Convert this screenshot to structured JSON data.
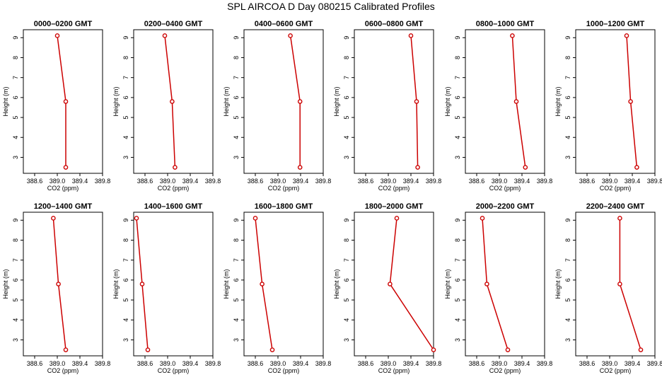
{
  "title": "SPL AIRCOA D  Day 080215  Calibrated Profiles",
  "chart_data": [
    {
      "type": "line",
      "title": "0000–0200 GMT",
      "xlabel": "CO2 (ppm)",
      "ylabel": "Height (m)",
      "xlim": [
        388.4,
        389.8
      ],
      "ylim": [
        2.2,
        9.4
      ],
      "xticks": [
        "388.6",
        "389.0",
        "389.4",
        "389.8"
      ],
      "yticks": [
        "3",
        "4",
        "5",
        "6",
        "7",
        "8",
        "9"
      ],
      "grid": false,
      "series": [
        {
          "x": [
            389.0,
            389.15,
            389.15
          ],
          "y": [
            9.1,
            5.8,
            2.5
          ]
        }
      ],
      "color": "#cc0000"
    },
    {
      "type": "line",
      "title": "0200–0400 GMT",
      "xlabel": "CO2 (ppm)",
      "ylabel": "Height (m)",
      "xlim": [
        388.4,
        389.8
      ],
      "ylim": [
        2.2,
        9.4
      ],
      "xticks": [
        "388.6",
        "389.0",
        "389.4",
        "389.8"
      ],
      "yticks": [
        "3",
        "4",
        "5",
        "6",
        "7",
        "8",
        "9"
      ],
      "grid": false,
      "series": [
        {
          "x": [
            388.95,
            389.08,
            389.13
          ],
          "y": [
            9.1,
            5.8,
            2.5
          ]
        }
      ],
      "color": "#cc0000"
    },
    {
      "type": "line",
      "title": "0400–0600 GMT",
      "xlabel": "CO2 (ppm)",
      "ylabel": "Height (m)",
      "xlim": [
        388.4,
        389.8
      ],
      "ylim": [
        2.2,
        9.4
      ],
      "xticks": [
        "388.6",
        "389.0",
        "389.4",
        "389.8"
      ],
      "yticks": [
        "3",
        "4",
        "5",
        "6",
        "7",
        "8",
        "9"
      ],
      "grid": false,
      "series": [
        {
          "x": [
            389.22,
            389.39,
            389.39
          ],
          "y": [
            9.1,
            5.8,
            2.5
          ]
        }
      ],
      "color": "#cc0000"
    },
    {
      "type": "line",
      "title": "0600–0800 GMT",
      "xlabel": "CO2 (ppm)",
      "ylabel": "Height (m)",
      "xlim": [
        388.4,
        389.8
      ],
      "ylim": [
        2.2,
        9.4
      ],
      "xticks": [
        "388.6",
        "389.0",
        "389.4",
        "389.8"
      ],
      "yticks": [
        "3",
        "4",
        "5",
        "6",
        "7",
        "8",
        "9"
      ],
      "grid": false,
      "series": [
        {
          "x": [
            389.4,
            389.5,
            389.52
          ],
          "y": [
            9.1,
            5.8,
            2.5
          ]
        }
      ],
      "color": "#cc0000"
    },
    {
      "type": "line",
      "title": "0800–1000 GMT",
      "xlabel": "CO2 (ppm)",
      "ylabel": "Height (m)",
      "xlim": [
        388.4,
        389.8
      ],
      "ylim": [
        2.2,
        9.4
      ],
      "xticks": [
        "388.6",
        "389.0",
        "389.4",
        "389.8"
      ],
      "yticks": [
        "3",
        "4",
        "5",
        "6",
        "7",
        "8",
        "9"
      ],
      "grid": false,
      "series": [
        {
          "x": [
            389.23,
            389.3,
            389.46
          ],
          "y": [
            9.1,
            5.8,
            2.5
          ]
        }
      ],
      "color": "#cc0000"
    },
    {
      "type": "line",
      "title": "1000–1200 GMT",
      "xlabel": "CO2 (ppm)",
      "ylabel": "Height (m)",
      "xlim": [
        388.4,
        389.8
      ],
      "ylim": [
        2.2,
        9.4
      ],
      "xticks": [
        "388.6",
        "389.0",
        "389.4",
        "389.8"
      ],
      "yticks": [
        "3",
        "4",
        "5",
        "6",
        "7",
        "8",
        "9"
      ],
      "grid": false,
      "series": [
        {
          "x": [
            389.3,
            389.37,
            389.48
          ],
          "y": [
            9.1,
            5.8,
            2.5
          ]
        }
      ],
      "color": "#cc0000"
    },
    {
      "type": "line",
      "title": "1200–1400 GMT",
      "xlabel": "CO2 (ppm)",
      "ylabel": "Height (m)",
      "xlim": [
        388.4,
        389.8
      ],
      "ylim": [
        2.2,
        9.4
      ],
      "xticks": [
        "388.6",
        "389.0",
        "389.4",
        "389.8"
      ],
      "yticks": [
        "3",
        "4",
        "5",
        "6",
        "7",
        "8",
        "9"
      ],
      "grid": false,
      "series": [
        {
          "x": [
            388.93,
            389.02,
            389.15
          ],
          "y": [
            9.1,
            5.8,
            2.5
          ]
        }
      ],
      "color": "#cc0000"
    },
    {
      "type": "line",
      "title": "1400–1600 GMT",
      "xlabel": "CO2 (ppm)",
      "ylabel": "Height (m)",
      "xlim": [
        388.4,
        389.8
      ],
      "ylim": [
        2.2,
        9.4
      ],
      "xticks": [
        "388.6",
        "389.0",
        "389.4",
        "389.8"
      ],
      "yticks": [
        "3",
        "4",
        "5",
        "6",
        "7",
        "8",
        "9"
      ],
      "grid": false,
      "series": [
        {
          "x": [
            388.45,
            388.55,
            388.65
          ],
          "y": [
            9.1,
            5.8,
            2.5
          ]
        }
      ],
      "color": "#cc0000"
    },
    {
      "type": "line",
      "title": "1600–1800 GMT",
      "xlabel": "CO2 (ppm)",
      "ylabel": "Height (m)",
      "xlim": [
        388.4,
        389.8
      ],
      "ylim": [
        2.2,
        9.4
      ],
      "xticks": [
        "388.6",
        "389.0",
        "389.4",
        "389.8"
      ],
      "yticks": [
        "3",
        "4",
        "5",
        "6",
        "7",
        "8",
        "9"
      ],
      "grid": false,
      "series": [
        {
          "x": [
            388.6,
            388.72,
            388.9
          ],
          "y": [
            9.1,
            5.8,
            2.5
          ]
        }
      ],
      "color": "#cc0000"
    },
    {
      "type": "line",
      "title": "1800–2000 GMT",
      "xlabel": "CO2 (ppm)",
      "ylabel": "Height (m)",
      "xlim": [
        388.4,
        389.8
      ],
      "ylim": [
        2.2,
        9.4
      ],
      "xticks": [
        "388.6",
        "389.0",
        "389.4",
        "389.8"
      ],
      "yticks": [
        "3",
        "4",
        "5",
        "6",
        "7",
        "8",
        "9"
      ],
      "grid": false,
      "series": [
        {
          "x": [
            389.15,
            389.03,
            389.8
          ],
          "y": [
            9.1,
            5.8,
            2.5
          ]
        }
      ],
      "color": "#cc0000"
    },
    {
      "type": "line",
      "title": "2000–2200 GMT",
      "xlabel": "CO2 (ppm)",
      "ylabel": "Height (m)",
      "xlim": [
        388.4,
        389.8
      ],
      "ylim": [
        2.2,
        9.4
      ],
      "xticks": [
        "388.6",
        "389.0",
        "389.4",
        "389.8"
      ],
      "yticks": [
        "3",
        "4",
        "5",
        "6",
        "7",
        "8",
        "9"
      ],
      "grid": false,
      "series": [
        {
          "x": [
            388.7,
            388.78,
            389.15
          ],
          "y": [
            9.1,
            5.8,
            2.5
          ]
        }
      ],
      "color": "#cc0000"
    },
    {
      "type": "line",
      "title": "2200–2400 GMT",
      "xlabel": "CO2 (ppm)",
      "ylabel": "Height (m)",
      "xlim": [
        388.4,
        389.8
      ],
      "ylim": [
        2.2,
        9.4
      ],
      "xticks": [
        "388.6",
        "389.0",
        "389.4",
        "389.8"
      ],
      "yticks": [
        "3",
        "4",
        "5",
        "6",
        "7",
        "8",
        "9"
      ],
      "grid": false,
      "series": [
        {
          "x": [
            389.18,
            389.18,
            389.55
          ],
          "y": [
            9.1,
            5.8,
            2.5
          ]
        }
      ],
      "color": "#cc0000"
    }
  ]
}
